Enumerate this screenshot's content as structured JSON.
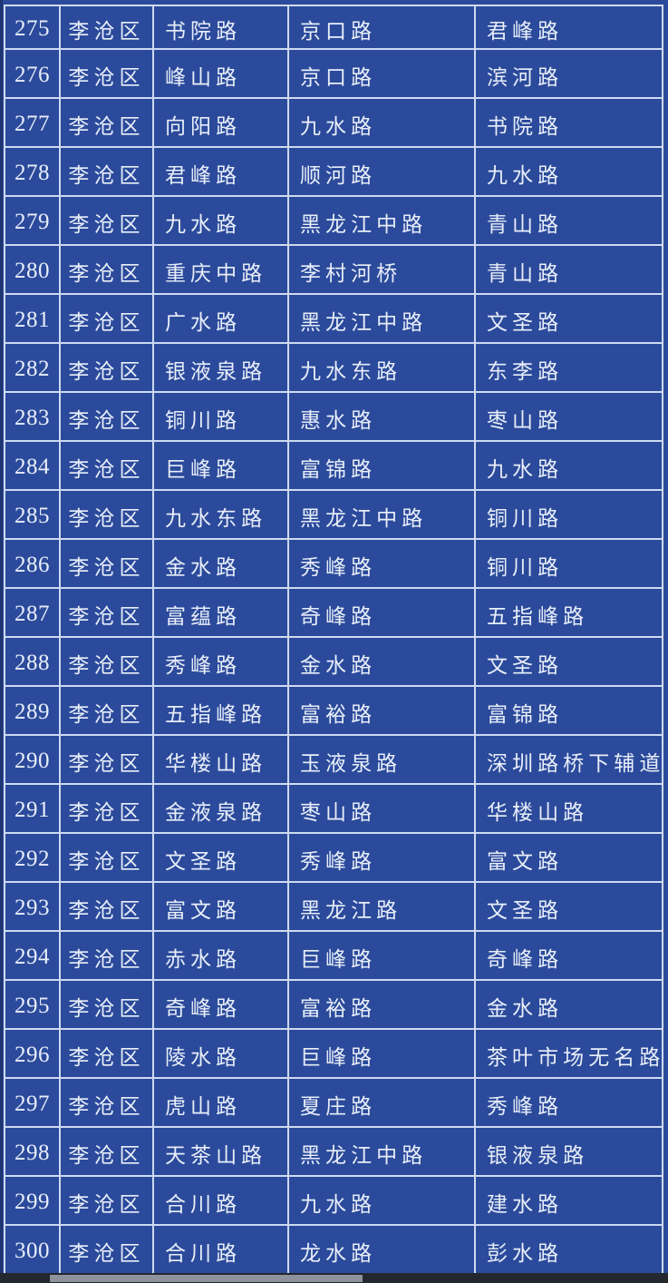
{
  "table": {
    "rows": [
      [
        "275",
        "李沧区",
        "书院路",
        "京口路",
        "君峰路"
      ],
      [
        "276",
        "李沧区",
        "峰山路",
        "京口路",
        "滨河路"
      ],
      [
        "277",
        "李沧区",
        "向阳路",
        "九水路",
        "书院路"
      ],
      [
        "278",
        "李沧区",
        "君峰路",
        "顺河路",
        "九水路"
      ],
      [
        "279",
        "李沧区",
        "九水路",
        "黑龙江中路",
        "青山路"
      ],
      [
        "280",
        "李沧区",
        "重庆中路",
        "李村河桥",
        "青山路"
      ],
      [
        "281",
        "李沧区",
        "广水路",
        "黑龙江中路",
        "文圣路"
      ],
      [
        "282",
        "李沧区",
        "银液泉路",
        "九水东路",
        "东李路"
      ],
      [
        "283",
        "李沧区",
        "铜川路",
        "惠水路",
        "枣山路"
      ],
      [
        "284",
        "李沧区",
        "巨峰路",
        "富锦路",
        "九水路"
      ],
      [
        "285",
        "李沧区",
        "九水东路",
        "黑龙江中路",
        "铜川路"
      ],
      [
        "286",
        "李沧区",
        "金水路",
        "秀峰路",
        "铜川路"
      ],
      [
        "287",
        "李沧区",
        "富蕴路",
        "奇峰路",
        "五指峰路"
      ],
      [
        "288",
        "李沧区",
        "秀峰路",
        "金水路",
        "文圣路"
      ],
      [
        "289",
        "李沧区",
        "五指峰路",
        "富裕路",
        "富锦路"
      ],
      [
        "290",
        "李沧区",
        "华楼山路",
        "玉液泉路",
        "深圳路桥下辅道"
      ],
      [
        "291",
        "李沧区",
        "金液泉路",
        "枣山路",
        "华楼山路"
      ],
      [
        "292",
        "李沧区",
        "文圣路",
        "秀峰路",
        "富文路"
      ],
      [
        "293",
        "李沧区",
        "富文路",
        "黑龙江路",
        "文圣路"
      ],
      [
        "294",
        "李沧区",
        "赤水路",
        "巨峰路",
        "奇峰路"
      ],
      [
        "295",
        "李沧区",
        "奇峰路",
        "富裕路",
        "金水路"
      ],
      [
        "296",
        "李沧区",
        "陵水路",
        "巨峰路",
        "茶叶市场无名路"
      ],
      [
        "297",
        "李沧区",
        "虎山路",
        "夏庄路",
        "秀峰路"
      ],
      [
        "298",
        "李沧区",
        "天茶山路",
        "黑龙江中路",
        "银液泉路"
      ],
      [
        "299",
        "李沧区",
        "合川路",
        "九水路",
        "建水路"
      ],
      [
        "300",
        "李沧区",
        "合川路",
        "龙水路",
        "彭水路"
      ]
    ]
  },
  "colors": {
    "table_bg": "#2b4a9b",
    "border": "#cfdaf1",
    "text": "#e8eef9",
    "bottom_bar_dark": "#23272e",
    "bottom_bar_light": "#8e929c"
  }
}
